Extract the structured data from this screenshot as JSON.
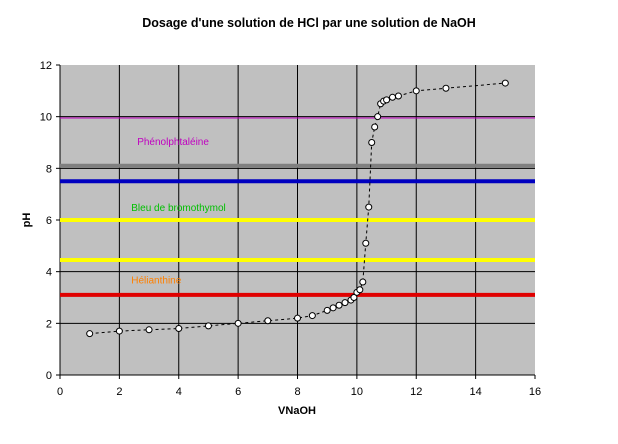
{
  "chart_data": {
    "type": "scatter",
    "title": "Dosage d'une solution de HCl par une solution de NaOH",
    "xlabel": "VNaOH",
    "ylabel": "pH",
    "xlim": [
      0,
      16
    ],
    "ylim": [
      0,
      12
    ],
    "xticks": [
      "0",
      "2",
      "4",
      "6",
      "8",
      "10",
      "12",
      "14",
      "16"
    ],
    "yticks": [
      "0",
      "2",
      "4",
      "6",
      "8",
      "10",
      "12"
    ],
    "grid": true,
    "plot_background": "#c0c0c0",
    "series": [
      {
        "line_style": "dashed",
        "color": "#000000",
        "marker": "open-circle",
        "x": [
          1,
          2,
          3,
          4,
          5,
          6,
          7,
          8,
          8.5,
          9,
          9.2,
          9.4,
          9.6,
          9.8,
          9.9,
          10,
          10.1,
          10.2,
          10.3,
          10.4,
          10.5,
          10.6,
          10.7,
          10.8,
          10.9,
          11,
          11.2,
          11.4,
          12,
          13,
          15
        ],
        "y": [
          1.6,
          1.7,
          1.75,
          1.8,
          1.9,
          2.0,
          2.1,
          2.2,
          2.3,
          2.5,
          2.6,
          2.7,
          2.8,
          2.9,
          3.0,
          3.2,
          3.3,
          3.6,
          5.1,
          6.5,
          9.0,
          9.6,
          10.0,
          10.5,
          10.6,
          10.65,
          10.75,
          10.8,
          11.0,
          11.1,
          11.3
        ]
      }
    ],
    "reference_lines": [
      {
        "y": 9.95,
        "color": "#c000c0",
        "width": 1
      },
      {
        "y": 8.1,
        "color": "#808080",
        "width": 4
      },
      {
        "y": 7.5,
        "color": "#0000c0",
        "width": 4
      },
      {
        "y": 6.0,
        "color": "#ffff00",
        "width": 4
      },
      {
        "y": 4.45,
        "color": "#ffff00",
        "width": 4
      },
      {
        "y": 3.1,
        "color": "#e00000",
        "width": 4
      }
    ],
    "annotations": [
      {
        "text": "Phénolphtaléine",
        "x": 2.6,
        "y": 9.05,
        "color": "#c000c0"
      },
      {
        "text": "Bleu de bromothymol",
        "x": 2.4,
        "y": 6.5,
        "color": "#00c000"
      },
      {
        "text": "Hélianthine",
        "x": 2.4,
        "y": 3.7,
        "color": "#ff8000"
      }
    ]
  }
}
